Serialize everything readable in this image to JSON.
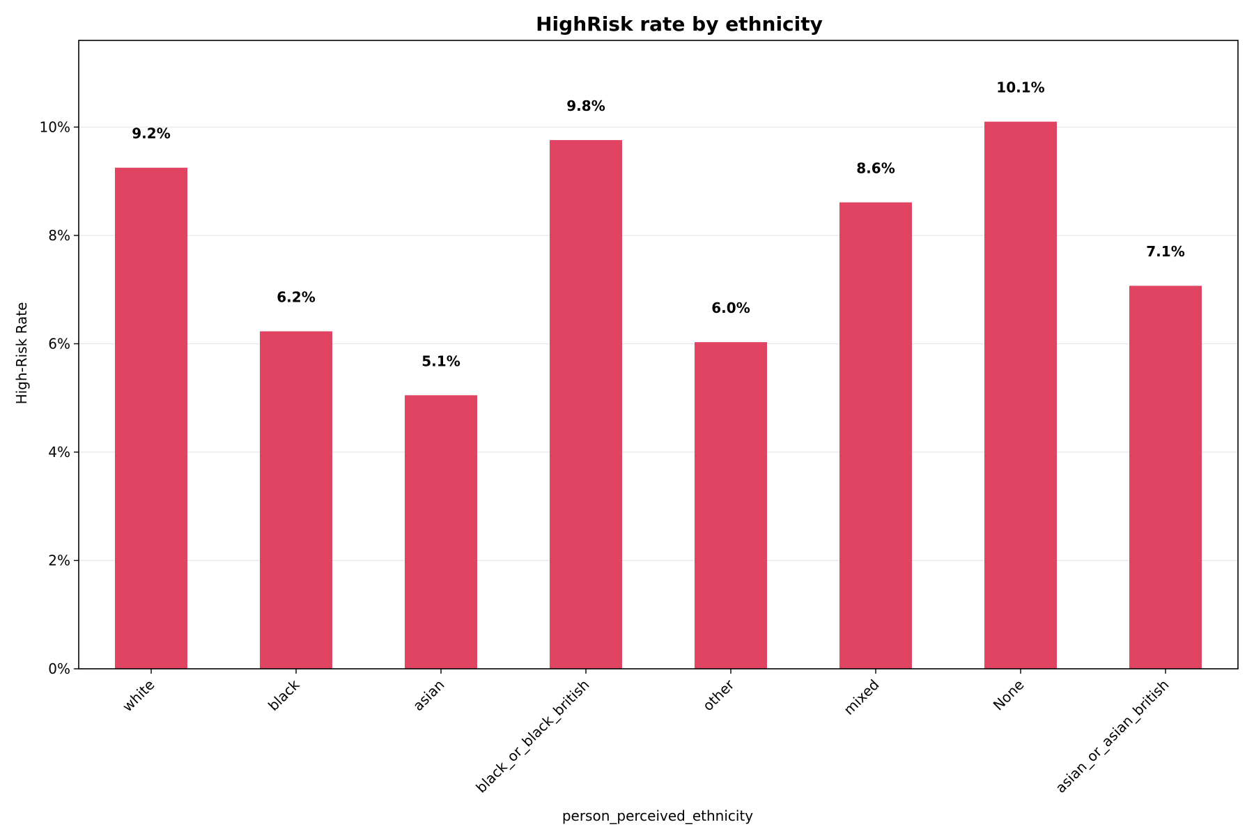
{
  "chart_data": {
    "type": "bar",
    "title": "HighRisk rate by ethnicity",
    "xlabel": "person_perceived_ethnicity",
    "ylabel": "High-Risk Rate",
    "categories": [
      "white",
      "black",
      "asian",
      "black_or_black_british",
      "other",
      "mixed",
      "None",
      "asian_or_asian_british"
    ],
    "values": [
      9.25,
      6.23,
      5.05,
      9.76,
      6.03,
      8.61,
      10.1,
      7.07
    ],
    "value_labels": [
      "9.2%",
      "6.2%",
      "5.1%",
      "9.8%",
      "6.0%",
      "8.6%",
      "10.1%",
      "7.1%"
    ],
    "y_ticks": [
      0,
      2,
      4,
      6,
      8,
      10
    ],
    "y_tick_labels": [
      "0%",
      "2%",
      "4%",
      "6%",
      "8%",
      "10%"
    ],
    "ylim": [
      0,
      11.6
    ],
    "bar_color": "#e04462",
    "grid": "horizontal",
    "legend": "none"
  }
}
